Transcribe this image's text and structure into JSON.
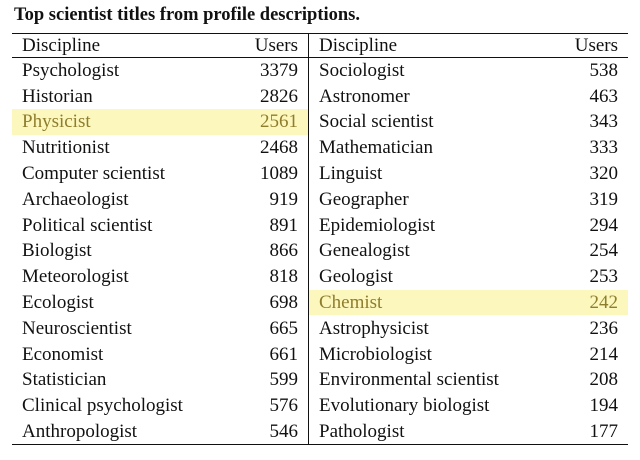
{
  "title": "Top scientist titles from profile descriptions.",
  "table": {
    "header": [
      "Discipline",
      "Users",
      "Discipline",
      "Users"
    ],
    "rows": [
      [
        "Psychologist",
        3379,
        "Sociologist",
        538
      ],
      [
        "Historian",
        2826,
        "Astronomer",
        463
      ],
      [
        "Physicist",
        2561,
        "Social scientist",
        343
      ],
      [
        "Nutritionist",
        2468,
        "Mathematician",
        333
      ],
      [
        "Computer scientist",
        1089,
        "Linguist",
        320
      ],
      [
        "Archaeologist",
        919,
        "Geographer",
        319
      ],
      [
        "Political scientist",
        891,
        "Epidemiologist",
        294
      ],
      [
        "Biologist",
        866,
        "Genealogist",
        254
      ],
      [
        "Meteorologist",
        818,
        "Geologist",
        253
      ],
      [
        "Ecologist",
        698,
        "Chemist",
        242
      ],
      [
        "Neuroscientist",
        665,
        "Astrophysicist",
        236
      ],
      [
        "Economist",
        661,
        "Microbiologist",
        214
      ],
      [
        "Statistician",
        599,
        "Environmental scientist",
        208
      ],
      [
        "Clinical psychologist",
        576,
        "Evolutionary biologist",
        194
      ],
      [
        "Anthropologist",
        546,
        "Pathologist",
        177
      ]
    ]
  }
}
